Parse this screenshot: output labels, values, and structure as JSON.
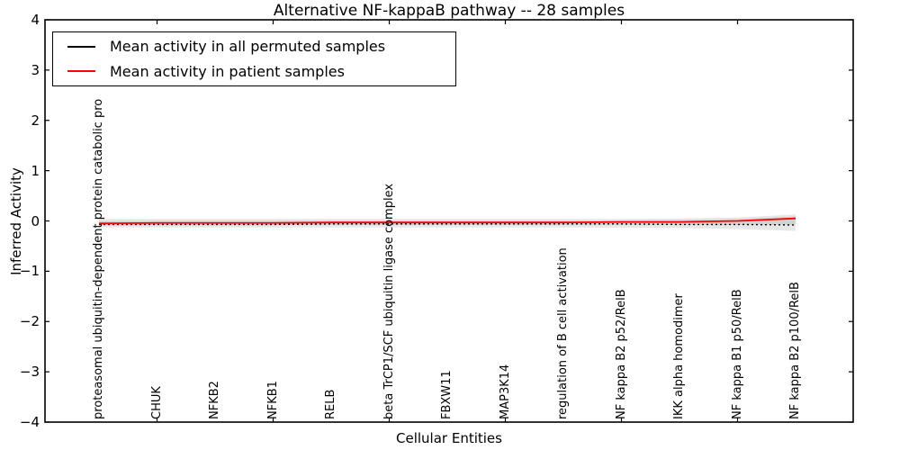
{
  "title": "Alternative NF-kappaB pathway -- 28 samples",
  "legend": {
    "items": [
      {
        "label": "Mean activity in all permuted samples",
        "color": "#000000"
      },
      {
        "label": "Mean activity in patient samples",
        "color": "#ff0000"
      }
    ]
  },
  "chart_data": {
    "type": "line",
    "title": "Alternative NF-kappaB pathway -- 28 samples",
    "xlabel": "Cellular Entities",
    "ylabel": "Inferred Activity",
    "ylim": [
      -4,
      4
    ],
    "ytick_values": [
      4,
      3,
      2,
      1,
      0,
      -1,
      -2,
      -3,
      -4
    ],
    "ytick_labels": [
      "4",
      "3",
      "2",
      "1",
      "0",
      "−1",
      "−2",
      "−3",
      "−4"
    ],
    "categories": [
      "proteasomal ubiquitin-dependent protein catabolic pro",
      "CHUK",
      "NFKB2",
      "NFKB1",
      "RELB",
      "beta TrCP1/SCF ubiquitin ligase complex",
      "FBXW11",
      "MAP3K14",
      "regulation of B cell activation",
      "NF kappa B2 p52/RelB",
      "IKK alpha homodimer",
      "NF kappa B1 p50/RelB",
      "NF kappa B2 p100/RelB"
    ],
    "xtick_indices": [
      1,
      3,
      5,
      7,
      9,
      11
    ],
    "series": [
      {
        "name": "Mean activity in all permuted samples",
        "color": "#000000",
        "line_style": "dotted",
        "values": [
          -0.07,
          -0.07,
          -0.07,
          -0.07,
          -0.06,
          -0.06,
          -0.06,
          -0.06,
          -0.06,
          -0.06,
          -0.07,
          -0.07,
          -0.08
        ]
      },
      {
        "name": "Mean activity in patient samples",
        "color": "#ff0000",
        "line_style": "solid",
        "values": [
          -0.05,
          -0.04,
          -0.04,
          -0.04,
          -0.03,
          -0.03,
          -0.03,
          -0.03,
          -0.03,
          -0.02,
          -0.02,
          0.0,
          0.05
        ]
      }
    ],
    "band": {
      "name": "permutation spread band",
      "upper": [
        0.04,
        0.04,
        0.04,
        0.04,
        0.04,
        0.04,
        0.04,
        0.04,
        0.04,
        0.04,
        0.05,
        0.07,
        0.13
      ],
      "lower": [
        -0.13,
        -0.13,
        -0.13,
        -0.13,
        -0.13,
        -0.13,
        -0.13,
        -0.13,
        -0.13,
        -0.13,
        -0.14,
        -0.16,
        -0.2
      ],
      "outer_color": "#e7e7e7",
      "inner_color": "#d2d2d2"
    },
    "frame_color": "#000000",
    "background_color": "#ffffff",
    "grid": false,
    "legend_position": "upper left"
  }
}
